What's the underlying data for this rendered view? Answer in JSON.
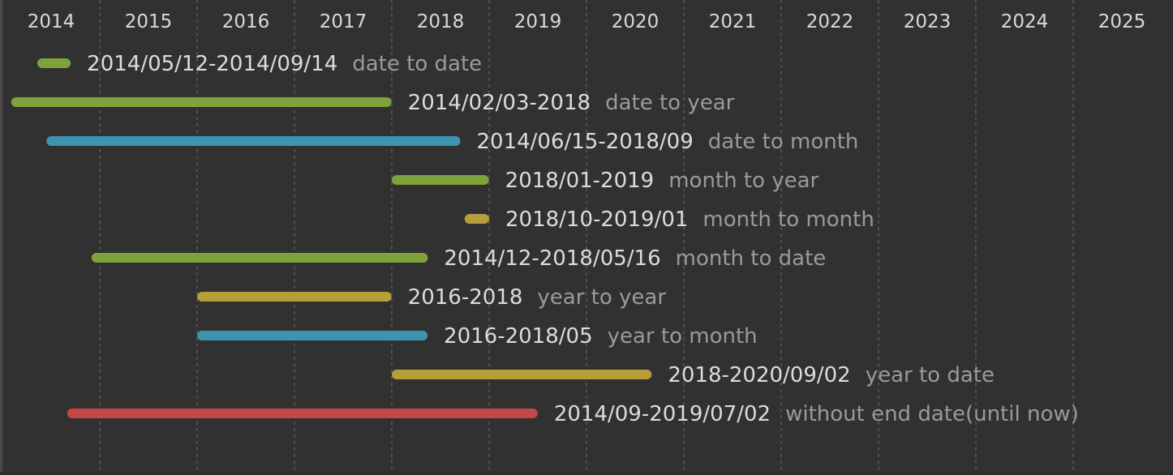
{
  "chart_data": {
    "type": "timeline",
    "colors": {
      "background": "#313131",
      "grid": "#6b6b6b",
      "axis_text": "#d9d9d9",
      "range_text": "#dcdcdc",
      "desc_text": "#9a9a9a"
    },
    "axis": {
      "years": [
        "2014",
        "2015",
        "2016",
        "2017",
        "2018",
        "2019",
        "2020",
        "2021",
        "2022",
        "2023",
        "2024",
        "2025"
      ],
      "start_year": 2014,
      "end_year": 2026
    },
    "grid": true,
    "items": [
      {
        "range": "2014/05/12-2014/09/14",
        "desc": "date to date",
        "start": "2014-05-12",
        "end": "2014-09-14",
        "color": "#7ea33a"
      },
      {
        "range": "2014/02/03-2018",
        "desc": "date to year",
        "start": "2014-02-03",
        "end": "2017-12-31",
        "color": "#7ea33a"
      },
      {
        "range": "2014/06/15-2018/09",
        "desc": "date to month",
        "start": "2014-06-15",
        "end": "2018-09-15",
        "color": "#3e93b0"
      },
      {
        "range": "2018/01-2019",
        "desc": "month to year",
        "start": "2018-01-01",
        "end": "2018-12-31",
        "color": "#7ea33a"
      },
      {
        "range": "2018/10-2019/01",
        "desc": "month to month",
        "start": "2018-10-01",
        "end": "2019-01-01",
        "color": "#b89e3a"
      },
      {
        "range": "2014/12-2018/05/16",
        "desc": "month to date",
        "start": "2014-12-01",
        "end": "2018-05-16",
        "color": "#7ea33a"
      },
      {
        "range": "2016-2018",
        "desc": "year to year",
        "start": "2016-01-01",
        "end": "2017-12-31",
        "color": "#b89e3a"
      },
      {
        "range": "2016-2018/05",
        "desc": "year to month",
        "start": "2016-01-01",
        "end": "2018-05-15",
        "color": "#3e93b0"
      },
      {
        "range": "2018-2020/09/02",
        "desc": "year to date",
        "start": "2018-01-01",
        "end": "2020-09-02",
        "color": "#b89e3a"
      },
      {
        "range": "2014/09-2019/07/02",
        "desc": "without end date(until now)",
        "start": "2014-09-01",
        "end": "2019-07-02",
        "color": "#c54848"
      }
    ]
  }
}
